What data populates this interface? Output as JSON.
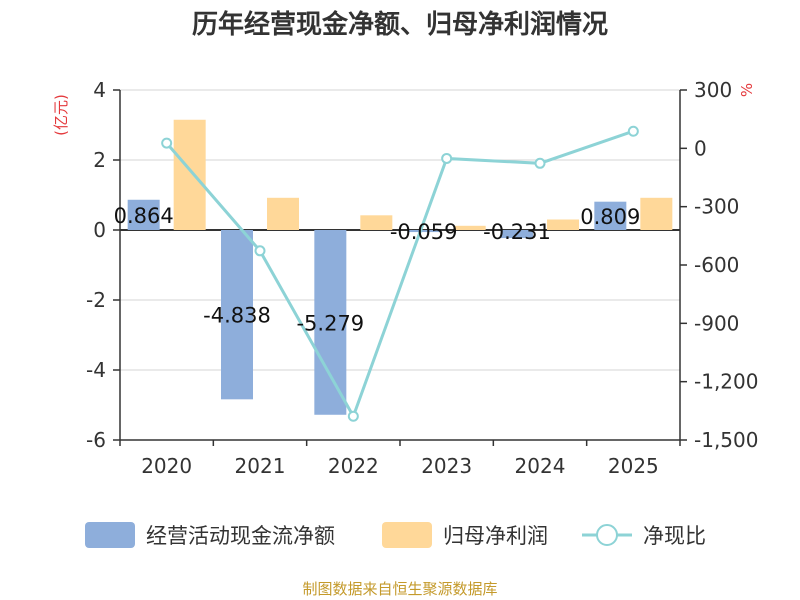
{
  "chart_data": {
    "type": "bar",
    "title": "历年经营现金净额、归母净利润情况",
    "categories": [
      "2020",
      "2021",
      "2022",
      "2023",
      "2024",
      "2025"
    ],
    "y_left": {
      "label": "(亿元)",
      "ylim": [
        -6,
        4
      ],
      "ticks": [
        4,
        2,
        0,
        -2,
        -4,
        -6
      ],
      "tick_labels": [
        "4",
        "2",
        "0",
        "-2",
        "-4",
        "-6"
      ]
    },
    "y_right": {
      "label": "%",
      "ylim": [
        -1500,
        300
      ],
      "ticks": [
        300,
        0,
        -300,
        -600,
        -900,
        -1200,
        -1500
      ],
      "tick_labels": [
        "300",
        "0",
        "-300",
        "-600",
        "-900",
        "-1,200",
        "-1,500"
      ]
    },
    "series": [
      {
        "name": "经营活动现金流净额",
        "type": "bar",
        "axis": "left",
        "color": "#8eaedb",
        "values": [
          0.864,
          -4.838,
          -5.279,
          -0.059,
          -0.231,
          0.809
        ],
        "labels": [
          "0.864",
          "-4.838",
          "-5.279",
          "-0.059",
          "-0.231",
          "0.809"
        ]
      },
      {
        "name": "归母净利润",
        "type": "bar",
        "axis": "left",
        "color": "#ffd899",
        "values": [
          3.15,
          0.92,
          0.42,
          0.12,
          0.3,
          0.92
        ]
      },
      {
        "name": "净现比",
        "type": "line",
        "axis": "right",
        "color": "#8dd3d6",
        "values": [
          27,
          -527,
          -1378,
          -52,
          -77,
          88
        ]
      }
    ],
    "grid": true,
    "legend_position": "bottom",
    "source": "制图数据来自恒生聚源数据库"
  }
}
